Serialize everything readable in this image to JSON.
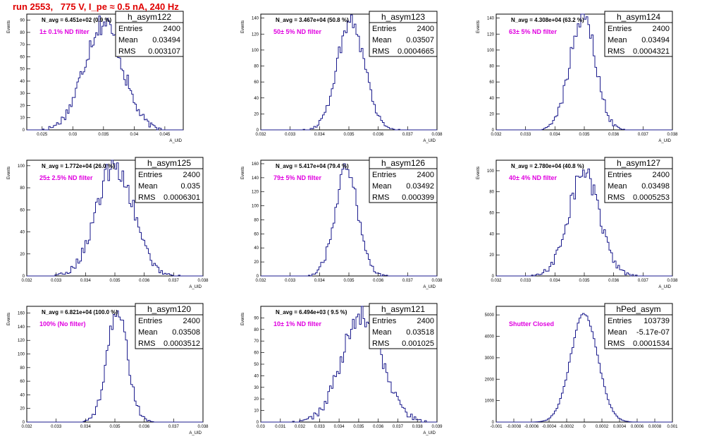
{
  "canvas_title": "run 2553,   775 V, I_pe ≈ 0.5 nA, 240 Hz",
  "stat_labels": {
    "entries": "Entries",
    "mean": "Mean",
    "rms": "RMS"
  },
  "chart_data": [
    {
      "type": "histogram",
      "name": "h_asym122",
      "navg": "N_avg = 6.451e+02 (0.9 %)",
      "filter": "1± 0.1% ND filter",
      "ylabel": "Events",
      "xlabel": "A_UID",
      "xlim": [
        0.0225,
        0.048
      ],
      "ylim": [
        0,
        95
      ],
      "xticks": [
        0.025,
        0.03,
        0.035,
        0.04,
        0.045
      ],
      "xtick_labels": [
        "0.025",
        "0.03",
        "0.035",
        "0.04",
        "0.045"
      ],
      "yticks": [
        0,
        10,
        20,
        30,
        40,
        50,
        60,
        70,
        80,
        90
      ],
      "ytick_labels": [
        "0",
        "10",
        "20",
        "30",
        "40",
        "50",
        "60",
        "70",
        "80",
        "90"
      ],
      "mean": 0.03494,
      "rms": 0.003107,
      "peak": 88,
      "stats": {
        "entries": "2400",
        "mean": "0.03494",
        "rms": "0.003107"
      }
    },
    {
      "type": "histogram",
      "name": "h_asym123",
      "navg": "N_avg = 3.467e+04 (50.8 %)",
      "filter": "50± 5% ND filter",
      "ylabel": "Events",
      "xlabel": "A_UID",
      "xlim": [
        0.032,
        0.038
      ],
      "ylim": [
        0,
        145
      ],
      "xticks": [
        0.032,
        0.033,
        0.034,
        0.035,
        0.036,
        0.037,
        0.038
      ],
      "xtick_labels": [
        "0.032",
        "0.033",
        "0.034",
        "0.035",
        "0.036",
        "0.037",
        "0.038"
      ],
      "yticks": [
        0,
        20,
        40,
        60,
        80,
        100,
        120,
        140
      ],
      "ytick_labels": [
        "0",
        "20",
        "40",
        "60",
        "80",
        "100",
        "120",
        "140"
      ],
      "mean": 0.03507,
      "rms": 0.0004665,
      "peak": 138,
      "stats": {
        "entries": "2400",
        "mean": "0.03507",
        "rms": "0.0004665"
      }
    },
    {
      "type": "histogram",
      "name": "h_asym124",
      "navg": "N_avg = 4.308e+04 (63.2 %)",
      "filter": "63± 5% ND filter",
      "ylabel": "Events",
      "xlabel": "A_UID",
      "xlim": [
        0.032,
        0.038
      ],
      "ylim": [
        0,
        145
      ],
      "xticks": [
        0.032,
        0.033,
        0.034,
        0.035,
        0.036,
        0.037,
        0.038
      ],
      "xtick_labels": [
        "0.032",
        "0.033",
        "0.034",
        "0.035",
        "0.036",
        "0.037",
        "0.038"
      ],
      "yticks": [
        0,
        20,
        40,
        60,
        80,
        100,
        120,
        140
      ],
      "ytick_labels": [
        "0",
        "20",
        "40",
        "60",
        "80",
        "100",
        "120",
        "140"
      ],
      "mean": 0.03494,
      "rms": 0.0004321,
      "peak": 145,
      "stats": {
        "entries": "2400",
        "mean": "0.03494",
        "rms": "0.0004321"
      }
    },
    {
      "type": "histogram",
      "name": "h_asym125",
      "navg": "N_avg = 1.772e+04 (26.0 %)",
      "filter": "25± 2.5% ND filter",
      "ylabel": "Events",
      "xlabel": "A_UID",
      "xlim": [
        0.032,
        0.038
      ],
      "ylim": [
        0,
        105
      ],
      "xticks": [
        0.032,
        0.033,
        0.034,
        0.035,
        0.036,
        0.037,
        0.038
      ],
      "xtick_labels": [
        "0.032",
        "0.033",
        "0.034",
        "0.035",
        "0.036",
        "0.037",
        "0.038"
      ],
      "yticks": [
        0,
        20,
        40,
        60,
        80,
        100
      ],
      "ytick_labels": [
        "0",
        "20",
        "40",
        "60",
        "80",
        "100"
      ],
      "mean": 0.035,
      "rms": 0.0006301,
      "peak": 100,
      "stats": {
        "entries": "2400",
        "mean": "0.035",
        "rms": "0.0006301"
      }
    },
    {
      "type": "histogram",
      "name": "h_asym126",
      "navg": "N_avg = 5.417e+04 (79.4 %)",
      "filter": "79± 5% ND filter",
      "ylabel": "Events",
      "xlabel": "A_UID",
      "xlim": [
        0.032,
        0.038
      ],
      "ylim": [
        0,
        165
      ],
      "xticks": [
        0.032,
        0.033,
        0.034,
        0.035,
        0.036,
        0.037,
        0.038
      ],
      "xtick_labels": [
        "0.032",
        "0.033",
        "0.034",
        "0.035",
        "0.036",
        "0.037",
        "0.038"
      ],
      "yticks": [
        0,
        20,
        40,
        60,
        80,
        100,
        120,
        140,
        160
      ],
      "ytick_labels": [
        "0",
        "20",
        "40",
        "60",
        "80",
        "100",
        "120",
        "140",
        "160"
      ],
      "mean": 0.03492,
      "rms": 0.000399,
      "peak": 150,
      "stats": {
        "entries": "2400",
        "mean": "0.03492",
        "rms": "0.000399"
      }
    },
    {
      "type": "histogram",
      "name": "h_asym127",
      "navg": "N_avg = 2.780e+04 (40.8 %)",
      "filter": "40± 4% ND filter",
      "ylabel": "Events",
      "xlabel": "A_UID",
      "xlim": [
        0.032,
        0.038
      ],
      "ylim": [
        0,
        110
      ],
      "xticks": [
        0.032,
        0.033,
        0.034,
        0.035,
        0.036,
        0.037,
        0.038
      ],
      "xtick_labels": [
        "0.032",
        "0.033",
        "0.034",
        "0.035",
        "0.036",
        "0.037",
        "0.038"
      ],
      "yticks": [
        0,
        20,
        40,
        60,
        80,
        100
      ],
      "ytick_labels": [
        "0",
        "20",
        "40",
        "60",
        "80",
        "100"
      ],
      "mean": 0.03498,
      "rms": 0.0005253,
      "peak": 98,
      "stats": {
        "entries": "2400",
        "mean": "0.03498",
        "rms": "0.0005253"
      }
    },
    {
      "type": "histogram",
      "name": "h_asym120",
      "navg": "N_avg = 6.821e+04 (100.0 %)",
      "filter": "100% (No filter)",
      "ylabel": "Events",
      "xlabel": "A_UID",
      "xlim": [
        0.032,
        0.038
      ],
      "ylim": [
        0,
        170
      ],
      "xticks": [
        0.032,
        0.033,
        0.034,
        0.035,
        0.036,
        0.037,
        0.038
      ],
      "xtick_labels": [
        "0.032",
        "0.033",
        "0.034",
        "0.035",
        "0.036",
        "0.037",
        "0.038"
      ],
      "yticks": [
        0,
        20,
        40,
        60,
        80,
        100,
        120,
        140,
        160
      ],
      "ytick_labels": [
        "0",
        "20",
        "40",
        "60",
        "80",
        "100",
        "120",
        "140",
        "160"
      ],
      "mean": 0.03508,
      "rms": 0.0003512,
      "peak": 162,
      "stats": {
        "entries": "2400",
        "mean": "0.03508",
        "rms": "0.0003512"
      }
    },
    {
      "type": "histogram",
      "name": "h_asym121",
      "navg": "N_avg = 6.494e+03 ( 9.5 %)",
      "filter": "10± 1% ND filter",
      "ylabel": "Events",
      "xlabel": "A_UID",
      "xlim": [
        0.03,
        0.039
      ],
      "ylim": [
        0,
        100
      ],
      "xticks": [
        0.03,
        0.031,
        0.032,
        0.033,
        0.034,
        0.035,
        0.036,
        0.037,
        0.038,
        0.039
      ],
      "xtick_labels": [
        "0.03",
        "0.031",
        "0.032",
        "0.033",
        "0.034",
        "0.035",
        "0.036",
        "0.037",
        "0.038",
        "0.039"
      ],
      "yticks": [
        0,
        10,
        20,
        30,
        40,
        50,
        60,
        70,
        80,
        90
      ],
      "ytick_labels": [
        "0",
        "10",
        "20",
        "30",
        "40",
        "50",
        "60",
        "70",
        "80",
        "90"
      ],
      "mean": 0.03518,
      "rms": 0.001025,
      "peak": 92,
      "stats": {
        "entries": "2400",
        "mean": "0.03518",
        "rms": "0.001025"
      }
    },
    {
      "type": "histogram",
      "name": "hPed_asym",
      "navg": "",
      "filter": "Shutter Closed",
      "ylabel": "",
      "xlabel": "",
      "xlim": [
        -0.001,
        0.001
      ],
      "ylim": [
        0,
        5400
      ],
      "xticks": [
        -0.001,
        -0.0008,
        -0.0006,
        -0.0004,
        -0.0002,
        0,
        0.0002,
        0.0004,
        0.0006,
        0.0008,
        0.001
      ],
      "xtick_labels": [
        "-0.001",
        "-0.0008",
        "-0.0006",
        "-0.0004",
        "-0.0002",
        "0",
        "0.0002",
        "0.0004",
        "0.0006",
        "0.0008",
        "0.001"
      ],
      "yticks": [
        0,
        1000,
        2000,
        3000,
        4000,
        5000
      ],
      "ytick_labels": [
        "0",
        "1000",
        "2000",
        "3000",
        "4000",
        "5000"
      ],
      "mean": -5.17e-07,
      "rms": 0.0001534,
      "peak": 5050,
      "stats": {
        "entries": "103739",
        "mean": "-5.17e-07",
        "rms": "0.0001534"
      }
    }
  ]
}
